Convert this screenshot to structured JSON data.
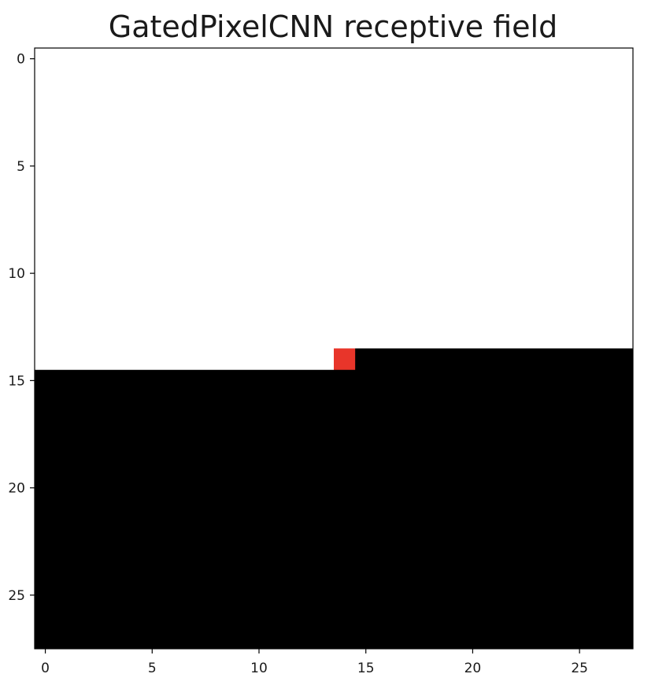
{
  "chart_data": {
    "type": "heatmap",
    "title": "GatedPixelCNN receptive field",
    "xlabel": "",
    "ylabel": "",
    "grid_size": [
      28,
      28
    ],
    "xlim": [
      -0.5,
      27.5
    ],
    "ylim": [
      27.5,
      -0.5
    ],
    "x_ticks": [
      0,
      5,
      10,
      15,
      20,
      25
    ],
    "y_ticks": [
      0,
      5,
      10,
      15,
      20,
      25
    ],
    "grid": false,
    "colors": {
      "visible": "#ffffff",
      "masked": "#000000",
      "target": "#e8352a"
    },
    "regions": [
      {
        "name": "receptive-field-rows",
        "value": "visible",
        "rows": [
          0,
          13
        ],
        "cols": [
          0,
          27
        ]
      },
      {
        "name": "receptive-field-row-left",
        "value": "visible",
        "rows": [
          14,
          14
        ],
        "cols": [
          0,
          13
        ]
      },
      {
        "name": "target-pixel",
        "value": "target",
        "rows": [
          14,
          14
        ],
        "cols": [
          14,
          14
        ]
      },
      {
        "name": "masked-row-right",
        "value": "masked",
        "rows": [
          14,
          14
        ],
        "cols": [
          15,
          27
        ]
      },
      {
        "name": "masked-rows-below",
        "value": "masked",
        "rows": [
          15,
          27
        ],
        "cols": [
          0,
          27
        ]
      }
    ]
  }
}
